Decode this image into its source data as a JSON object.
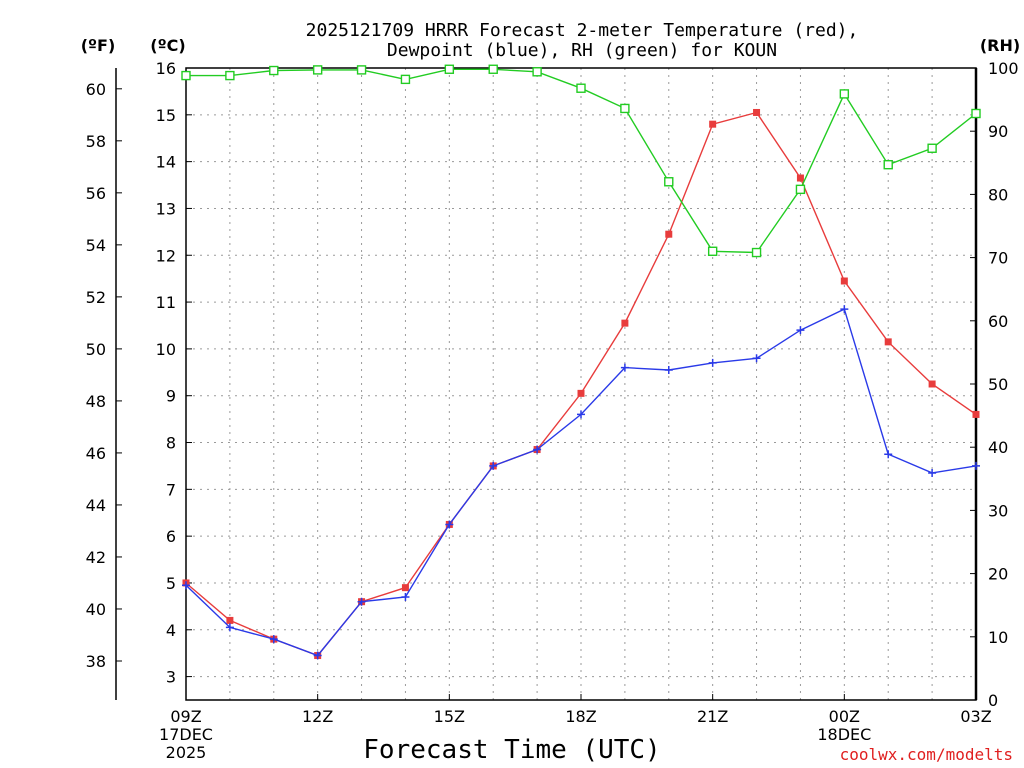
{
  "chart_data": {
    "type": "line",
    "title": "2025121709 HRRR Forecast 2-meter Temperature (red),",
    "subtitle": "Dewpoint (blue), RH (green) for KOUN",
    "xlabel": "Forecast Time (UTC)",
    "credit": "coolwx.com/modelts",
    "units": {
      "fahrenheit": "(ºF)",
      "celsius": "(ºC)",
      "rh": "(RH)"
    },
    "x_hours": [
      0,
      1,
      2,
      3,
      4,
      5,
      6,
      7,
      8,
      9,
      10,
      11,
      12,
      13,
      14,
      15,
      16,
      17,
      18
    ],
    "x_ticks": [
      {
        "hour": 0,
        "lines": [
          "09Z",
          "17DEC",
          "2025"
        ]
      },
      {
        "hour": 3,
        "lines": [
          "12Z"
        ]
      },
      {
        "hour": 6,
        "lines": [
          "15Z"
        ]
      },
      {
        "hour": 9,
        "lines": [
          "18Z"
        ]
      },
      {
        "hour": 12,
        "lines": [
          "21Z"
        ]
      },
      {
        "hour": 15,
        "lines": [
          "00Z",
          "18DEC"
        ]
      },
      {
        "hour": 18,
        "lines": [
          "03Z"
        ]
      }
    ],
    "celsius_axis": {
      "ylim": [
        2.5,
        16
      ],
      "ticks": [
        3,
        4,
        5,
        6,
        7,
        8,
        9,
        10,
        11,
        12,
        13,
        14,
        15,
        16
      ]
    },
    "fahrenheit_axis": {
      "ticks": [
        38,
        40,
        42,
        44,
        46,
        48,
        50,
        52,
        54,
        56,
        58,
        60
      ]
    },
    "rh_axis": {
      "ylim": [
        0,
        100
      ],
      "ticks": [
        0,
        10,
        20,
        30,
        40,
        50,
        60,
        70,
        80,
        90,
        100
      ]
    },
    "series": [
      {
        "name": "Temperature",
        "unit": "C",
        "axis": "celsius",
        "color": "#e83c3c",
        "marker": "filled-square",
        "values": [
          5.0,
          4.2,
          3.8,
          3.45,
          4.6,
          4.9,
          6.25,
          7.5,
          7.85,
          9.05,
          10.55,
          12.45,
          14.8,
          15.05,
          13.65,
          11.45,
          10.15,
          9.25,
          8.6
        ]
      },
      {
        "name": "Dewpoint",
        "unit": "C",
        "axis": "celsius",
        "color": "#2a3ae8",
        "marker": "plus",
        "values": [
          4.95,
          4.05,
          3.8,
          3.45,
          4.6,
          4.7,
          6.25,
          7.5,
          7.85,
          8.6,
          9.6,
          9.55,
          9.7,
          9.8,
          10.4,
          10.85,
          7.75,
          7.35,
          7.5
        ]
      },
      {
        "name": "RH",
        "unit": "%",
        "axis": "rh",
        "color": "#22cc22",
        "marker": "open-square",
        "values": [
          98.8,
          98.8,
          99.6,
          99.7,
          99.7,
          98.2,
          99.8,
          99.8,
          99.4,
          96.8,
          93.6,
          82.0,
          71.0,
          70.8,
          80.8,
          95.9,
          84.7,
          87.3,
          92.8
        ]
      }
    ]
  }
}
